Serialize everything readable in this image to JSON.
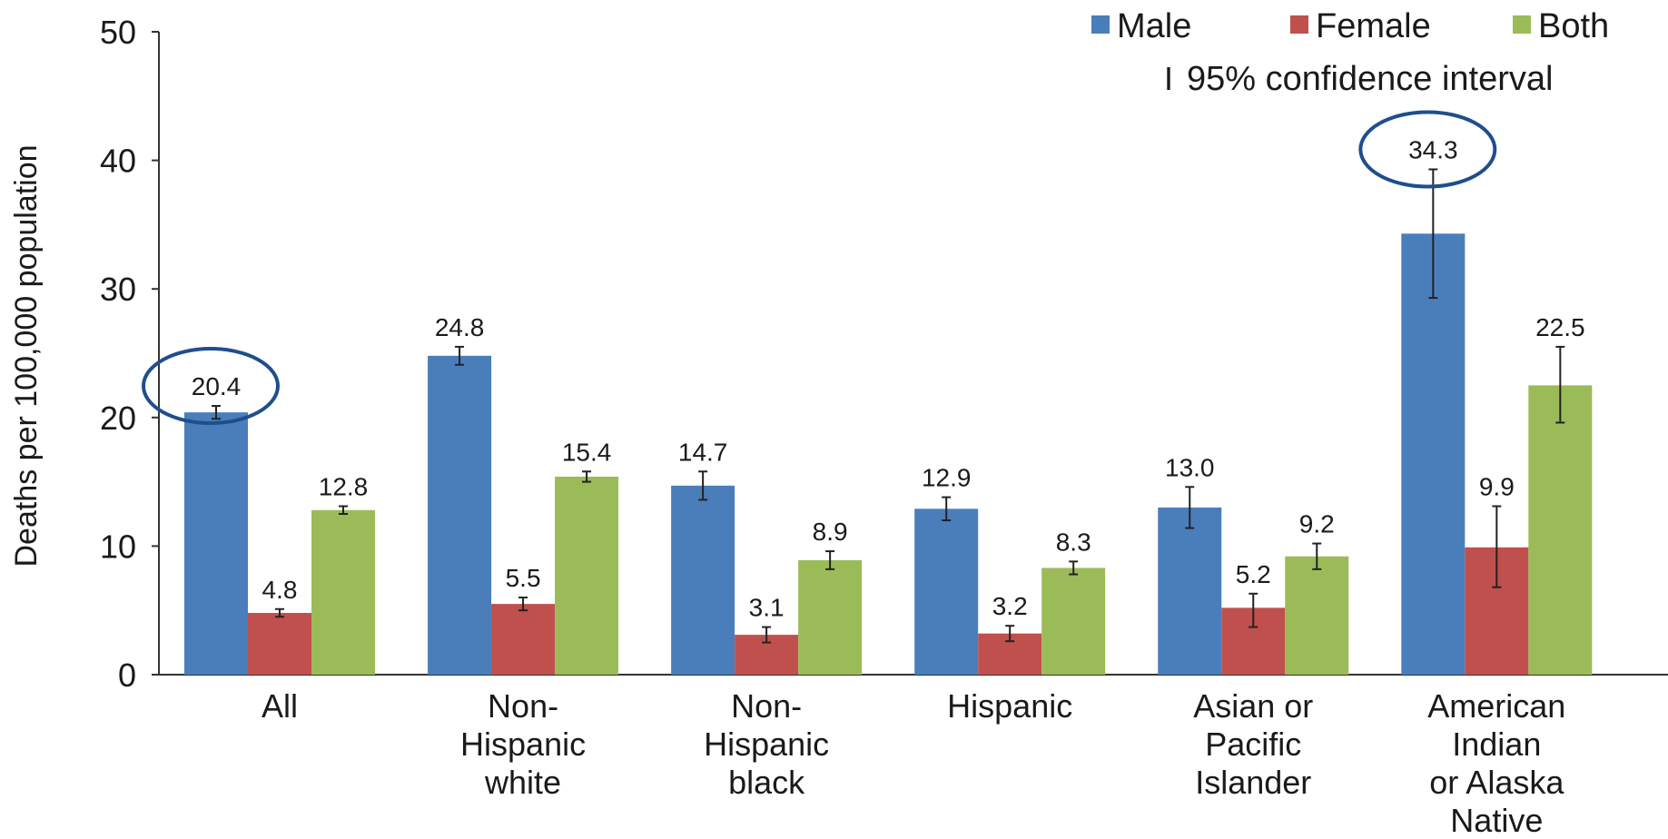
{
  "chart_data": {
    "type": "bar",
    "ylabel": "Deaths per 100,000 population",
    "ylim": [
      0,
      50
    ],
    "yticks": [
      "0",
      "10",
      "20",
      "30",
      "40",
      "50"
    ],
    "categories": [
      [
        "All"
      ],
      [
        "Non-",
        "Hispanic",
        "white"
      ],
      [
        "Non-",
        "Hispanic",
        "black"
      ],
      [
        "Hispanic"
      ],
      [
        "Asian or",
        "Pacific",
        "Islander"
      ],
      [
        "American",
        "Indian",
        "or Alaska",
        "Native"
      ]
    ],
    "series": [
      {
        "name": "Male",
        "color": "#4a7ebb",
        "values": [
          20.4,
          24.8,
          14.7,
          12.9,
          13.0,
          34.3
        ],
        "labels": [
          "20.4",
          "24.8",
          "14.7",
          "12.9",
          "13.0",
          "34.3"
        ],
        "ci_low": [
          19.9,
          24.1,
          13.6,
          12.0,
          11.4,
          29.3
        ],
        "ci_high": [
          20.9,
          25.5,
          15.8,
          13.8,
          14.6,
          39.3
        ]
      },
      {
        "name": "Female",
        "color": "#c0504d",
        "values": [
          4.8,
          5.5,
          3.1,
          3.2,
          5.2,
          9.9
        ],
        "labels": [
          "4.8",
          "5.5",
          "3.1",
          "3.2",
          "5.2",
          "9.9"
        ],
        "ci_low": [
          4.5,
          5.0,
          2.5,
          2.6,
          3.7,
          6.8
        ],
        "ci_high": [
          5.1,
          6.0,
          3.7,
          3.8,
          6.3,
          13.1
        ]
      },
      {
        "name": "Both",
        "color": "#9bbb59",
        "values": [
          12.8,
          15.4,
          8.9,
          8.3,
          9.2,
          22.5
        ],
        "labels": [
          "12.8",
          "15.4",
          "8.9",
          "8.3",
          "9.2",
          "22.5"
        ],
        "ci_low": [
          12.5,
          15.0,
          8.2,
          7.8,
          8.2,
          19.6
        ],
        "ci_high": [
          13.1,
          15.8,
          9.6,
          8.8,
          10.2,
          25.5
        ]
      }
    ],
    "legend": {
      "position": "top-right",
      "ci_label": "95% confidence interval",
      "ci_glyph": "I"
    },
    "highlighted_labels": [
      {
        "series": 0,
        "category": 0,
        "color": "#1f4e8c"
      },
      {
        "series": 0,
        "category": 5,
        "color": "#1f4e8c"
      }
    ],
    "grid": false
  }
}
